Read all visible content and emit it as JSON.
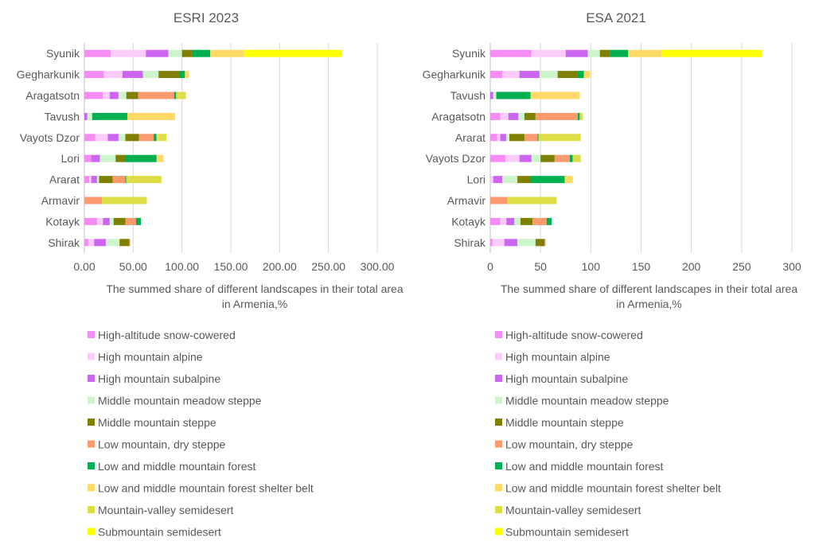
{
  "chart_data": [
    {
      "type": "bar",
      "orientation": "horizontal",
      "stacked": true,
      "title": "ESRI 2023",
      "xlabel": "The summed share of different landscapes in their total area in Armenia,%",
      "ylabel": "",
      "xlim": [
        0,
        300
      ],
      "xticks": [
        "0.00",
        "50.00",
        "100.00",
        "150.00",
        "200.00",
        "250.00",
        "300.00"
      ],
      "grid": true,
      "legend_position": "bottom",
      "categories": [
        "Syunik",
        "Gegharkunik",
        "Aragatsotn",
        "Tavush",
        "Vayots Dzor",
        "Lori",
        "Ararat",
        "Armavir",
        "Kotayk",
        "Shirak"
      ],
      "series": [
        {
          "name": "High-altitude snow-cowered",
          "color": "#f48cf4",
          "values": [
            27,
            20,
            19,
            0,
            11,
            7,
            5,
            0,
            13,
            4
          ]
        },
        {
          "name": "High mountain alpine",
          "color": "#fbccfb",
          "values": [
            36,
            19,
            7,
            0,
            13,
            0,
            2,
            0,
            6,
            6
          ]
        },
        {
          "name": "High mountain subalpine",
          "color": "#cc66f0",
          "values": [
            23,
            21,
            9,
            3,
            11,
            9,
            6,
            0,
            7,
            12
          ]
        },
        {
          "name": "Middle mountain meadow steppe",
          "color": "#ccf5cc",
          "values": [
            14,
            16,
            8,
            5,
            7,
            16,
            2,
            0,
            4,
            14
          ]
        },
        {
          "name": "Middle mountain steppe",
          "color": "#808000",
          "values": [
            10,
            21,
            12,
            0,
            14,
            10,
            14,
            0,
            12,
            10
          ]
        },
        {
          "name": "Low mountain, dry steppe",
          "color": "#fa9a6e",
          "values": [
            0,
            0,
            37,
            0,
            15,
            0,
            13,
            18,
            11,
            1
          ]
        },
        {
          "name": "Low and middle mountain forest",
          "color": "#00b050",
          "values": [
            19,
            6,
            2,
            36,
            3,
            32,
            1,
            0,
            5,
            0
          ]
        },
        {
          "name": "Low and middle mountain forest shelter belt",
          "color": "#ffd966",
          "values": [
            35,
            4,
            0,
            49,
            2,
            7,
            0,
            0,
            0,
            0
          ]
        },
        {
          "name": "Mountain-valley semidesert",
          "color": "#dedd45",
          "values": [
            0,
            0,
            10,
            0,
            8,
            0,
            36,
            46,
            0,
            0
          ]
        },
        {
          "name": "Submountain semidesert",
          "color": "#ffff00",
          "values": [
            100,
            0,
            0,
            0,
            0,
            0,
            0,
            0,
            0,
            0
          ]
        }
      ]
    },
    {
      "type": "bar",
      "orientation": "horizontal",
      "stacked": true,
      "title": "ESA 2021",
      "xlabel": "The summed share of different landscapes in their total area in Armenia,%",
      "ylabel": "",
      "xlim": [
        0,
        300
      ],
      "xticks": [
        "0",
        "50",
        "100",
        "150",
        "200",
        "250",
        "300"
      ],
      "grid": true,
      "legend_position": "bottom",
      "categories": [
        "Syunik",
        "Gegharkunik",
        "Tavush",
        "Aragatsotn",
        "Ararat",
        "Vayots Dzor",
        "Lori",
        "Armavir",
        "Kotayk",
        "Shirak"
      ],
      "series": [
        {
          "name": "High-altitude snow-cowered",
          "color": "#f48cf4",
          "values": [
            41,
            12,
            0,
            10,
            7,
            15,
            0,
            0,
            10,
            2
          ]
        },
        {
          "name": "High mountain alpine",
          "color": "#fbccfb",
          "values": [
            34,
            17,
            0,
            8,
            3,
            14,
            3,
            0,
            6,
            12
          ]
        },
        {
          "name": "High mountain subalpine",
          "color": "#cc66f0",
          "values": [
            22,
            20,
            3,
            10,
            6,
            12,
            9,
            0,
            8,
            13
          ]
        },
        {
          "name": "Middle mountain meadow steppe",
          "color": "#ccf5cc",
          "values": [
            12,
            18,
            3,
            6,
            3,
            9,
            15,
            0,
            6,
            18
          ]
        },
        {
          "name": "Middle mountain steppe",
          "color": "#808000",
          "values": [
            10,
            20,
            0,
            11,
            15,
            14,
            13,
            0,
            12,
            9
          ]
        },
        {
          "name": "Low mountain, dry steppe",
          "color": "#fa9a6e",
          "values": [
            0,
            0,
            0,
            42,
            13,
            15,
            0,
            17,
            14,
            1
          ]
        },
        {
          "name": "Low and middle mountain forest",
          "color": "#00b050",
          "values": [
            18,
            6,
            34,
            2,
            1,
            3,
            34,
            0,
            5,
            0
          ]
        },
        {
          "name": "Low and middle mountain forest shelter belt",
          "color": "#ffd966",
          "values": [
            33,
            6,
            49,
            0,
            0,
            0,
            8,
            0,
            0,
            0
          ]
        },
        {
          "name": "Mountain-valley semidesert",
          "color": "#dedd45",
          "values": [
            0,
            0,
            0,
            3,
            42,
            8,
            0,
            49,
            0,
            0
          ]
        },
        {
          "name": "Submountain semidesert",
          "color": "#ffff00",
          "values": [
            100,
            0,
            0,
            0,
            0,
            0,
            0,
            0,
            0,
            0
          ]
        }
      ]
    }
  ]
}
